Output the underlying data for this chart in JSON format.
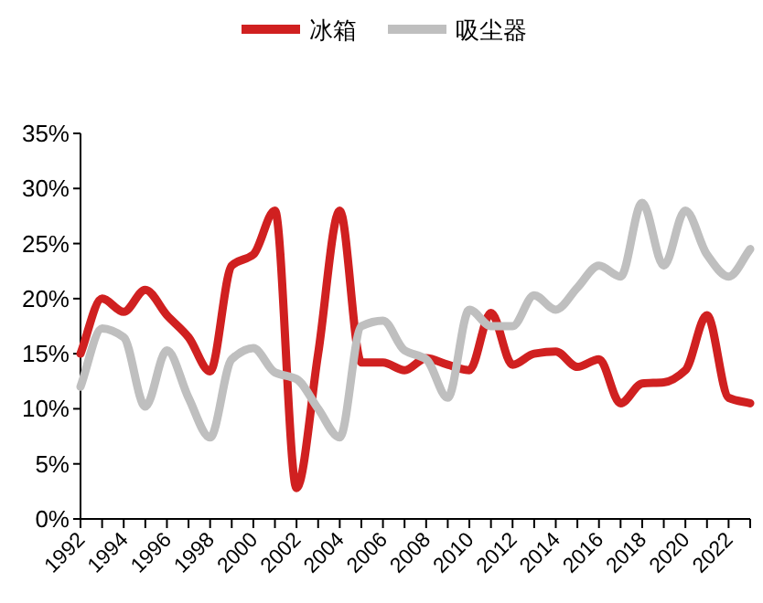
{
  "chart_data": {
    "type": "line",
    "x": [
      1992,
      1993,
      1994,
      1995,
      1996,
      1997,
      1998,
      1999,
      2000,
      2001,
      2002,
      2003,
      2004,
      2005,
      2006,
      2007,
      2008,
      2009,
      2010,
      2011,
      2012,
      2013,
      2014,
      2015,
      2016,
      2017,
      2018,
      2019,
      2020,
      2021,
      2022,
      2023
    ],
    "series": [
      {
        "name": "冰箱",
        "color": "#d02020",
        "values": [
          15,
          20,
          18.8,
          20.8,
          18.5,
          16.5,
          13.4,
          23,
          24,
          28,
          2.8,
          15,
          28,
          14.2,
          14.2,
          13.5,
          14.6,
          14,
          13.5,
          18.7,
          14,
          15,
          15.2,
          13.8,
          14.5,
          10.5,
          12.3,
          12.4,
          13.5,
          18.5,
          11,
          10.5
        ]
      },
      {
        "name": "吸尘器",
        "color": "#bfbfbf",
        "values": [
          12,
          17.3,
          16.5,
          10.2,
          15.3,
          11,
          7.4,
          14.5,
          15.5,
          13.3,
          12.7,
          10,
          7.4,
          17.5,
          18,
          15.3,
          14.5,
          11,
          19,
          17.5,
          17.5,
          20.3,
          19,
          21,
          23,
          22,
          28.7,
          23,
          28,
          24,
          22,
          24.5
        ]
      }
    ],
    "ylim": [
      0,
      35
    ],
    "yticks": [
      {
        "value": 0,
        "label": "0%"
      },
      {
        "value": 5,
        "label": "5%"
      },
      {
        "value": 10,
        "label": "10%"
      },
      {
        "value": 15,
        "label": "15%"
      },
      {
        "value": 20,
        "label": "20%"
      },
      {
        "value": 25,
        "label": "25%"
      },
      {
        "value": 30,
        "label": "30%"
      },
      {
        "value": 35,
        "label": "35%"
      }
    ],
    "xlim": [
      1992,
      2023
    ],
    "xticks": [
      {
        "value": 1992,
        "label": "1992"
      },
      {
        "value": 1993,
        "label": null
      },
      {
        "value": 1994,
        "label": "1994"
      },
      {
        "value": 1995,
        "label": null
      },
      {
        "value": 1996,
        "label": "1996"
      },
      {
        "value": 1997,
        "label": null
      },
      {
        "value": 1998,
        "label": "1998"
      },
      {
        "value": 1999,
        "label": null
      },
      {
        "value": 2000,
        "label": "2000"
      },
      {
        "value": 2001,
        "label": null
      },
      {
        "value": 2002,
        "label": "2002"
      },
      {
        "value": 2003,
        "label": null
      },
      {
        "value": 2004,
        "label": "2004"
      },
      {
        "value": 2005,
        "label": null
      },
      {
        "value": 2006,
        "label": "2006"
      },
      {
        "value": 2007,
        "label": null
      },
      {
        "value": 2008,
        "label": "2008"
      },
      {
        "value": 2009,
        "label": null
      },
      {
        "value": 2010,
        "label": "2010"
      },
      {
        "value": 2011,
        "label": null
      },
      {
        "value": 2012,
        "label": "2012"
      },
      {
        "value": 2013,
        "label": null
      },
      {
        "value": 2014,
        "label": "2014"
      },
      {
        "value": 2015,
        "label": null
      },
      {
        "value": 2016,
        "label": "2016"
      },
      {
        "value": 2017,
        "label": null
      },
      {
        "value": 2018,
        "label": "2018"
      },
      {
        "value": 2019,
        "label": null
      },
      {
        "value": 2020,
        "label": "2020"
      },
      {
        "value": 2021,
        "label": null
      },
      {
        "value": 2022,
        "label": "2022"
      },
      {
        "value": 2023,
        "label": null
      }
    ],
    "legend": "top",
    "grid": false,
    "marker": "none",
    "line_style": "solid"
  }
}
